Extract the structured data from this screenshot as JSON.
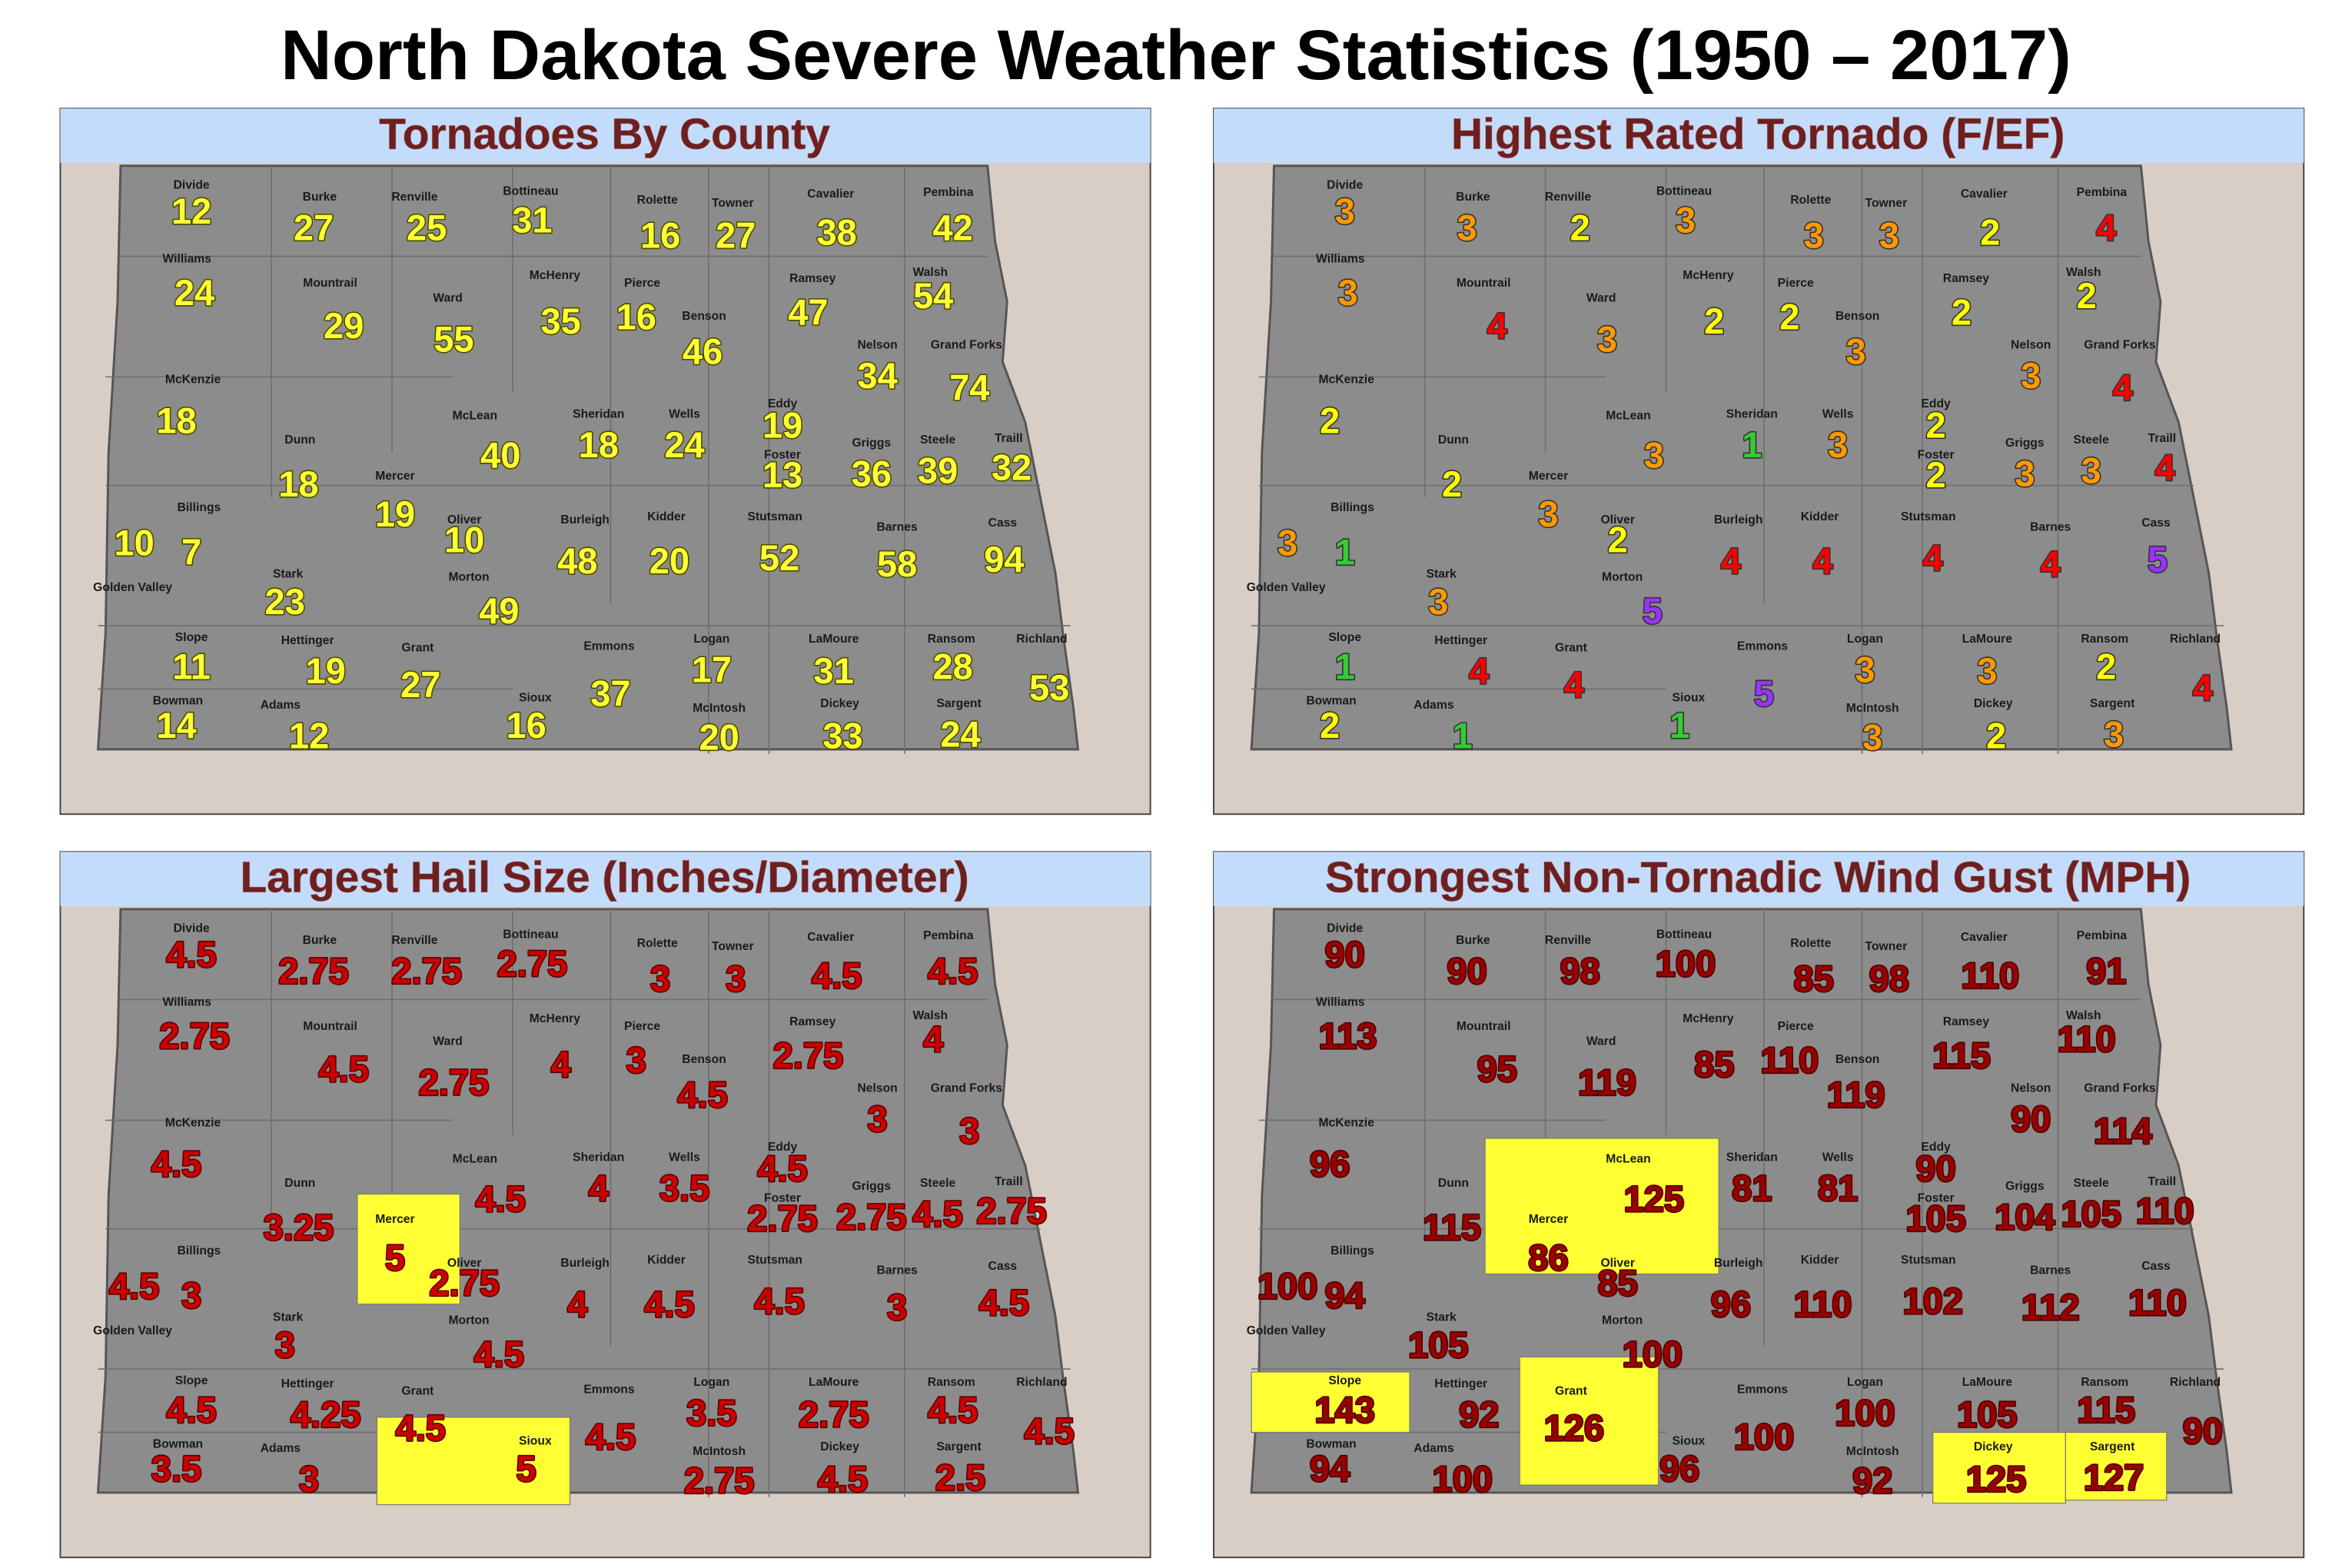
{
  "title": "North Dakota Severe Weather Statistics (1950 – 2017)",
  "counties": [
    "Divide",
    "Burke",
    "Renville",
    "Bottineau",
    "Rolette",
    "Towner",
    "Cavalier",
    "Pembina",
    "Williams",
    "Mountrail",
    "Ward",
    "McHenry",
    "Pierce",
    "Benson",
    "Ramsey",
    "Walsh",
    "Nelson",
    "Grand Forks",
    "McKenzie",
    "Dunn",
    "Mercer",
    "McLean",
    "Sheridan",
    "Wells",
    "Eddy",
    "Foster",
    "Griggs",
    "Steele",
    "Traill",
    "Billings",
    "Golden Valley",
    "Oliver",
    "Burleigh",
    "Kidder",
    "Stutsman",
    "Barnes",
    "Cass",
    "Stark",
    "Morton",
    "Slope",
    "Hettinger",
    "Grant",
    "Emmons",
    "Logan",
    "LaMoure",
    "Ransom",
    "Richland",
    "Bowman",
    "Adams",
    "Sioux",
    "McIntosh",
    "Dickey",
    "Sargent"
  ],
  "maps": [
    {
      "title": "Tornadoes By County",
      "value_color": "#ffff33",
      "outline_color": "#4a4a00",
      "values": [
        12,
        27,
        25,
        31,
        16,
        27,
        38,
        42,
        24,
        29,
        55,
        35,
        16,
        46,
        47,
        54,
        34,
        74,
        18,
        18,
        19,
        40,
        18,
        24,
        19,
        13,
        36,
        39,
        32,
        7,
        10,
        10,
        48,
        20,
        52,
        58,
        94,
        23,
        49,
        11,
        19,
        27,
        37,
        17,
        31,
        28,
        53,
        14,
        12,
        16,
        20,
        33,
        24
      ]
    },
    {
      "title": "Highest Rated Tornado (F/EF)",
      "outline_color": "#333333",
      "color_scale": [
        {
          "value": 1,
          "color": "#33cc33"
        },
        {
          "value": 2,
          "color": "#ffff00"
        },
        {
          "value": 3,
          "color": "#ff9900"
        },
        {
          "value": 4,
          "color": "#ff0000"
        },
        {
          "value": 5,
          "color": "#9933ff"
        }
      ],
      "values": [
        3,
        3,
        2,
        3,
        3,
        3,
        2,
        4,
        3,
        4,
        3,
        2,
        2,
        3,
        2,
        2,
        3,
        4,
        2,
        2,
        3,
        3,
        1,
        3,
        2,
        2,
        3,
        3,
        4,
        1,
        3,
        2,
        4,
        4,
        4,
        4,
        5,
        3,
        5,
        1,
        4,
        4,
        5,
        3,
        3,
        2,
        4,
        2,
        1,
        1,
        3,
        2,
        3
      ]
    },
    {
      "title": "Largest Hail Size (Inches/Diameter)",
      "value_color": "#cc0000",
      "outline_color": "#550000",
      "highlight_color": "#ffff33",
      "highlight": [
        "Mercer",
        "Sioux"
      ],
      "values": [
        4.5,
        2.75,
        2.75,
        2.75,
        3,
        3,
        4.5,
        4.5,
        2.75,
        4.5,
        2.75,
        4,
        3,
        4.5,
        2.75,
        4,
        3,
        3,
        4.5,
        3.25,
        5,
        4.5,
        4,
        3.5,
        4.5,
        2.75,
        2.75,
        4.5,
        2.75,
        3,
        4.5,
        2.75,
        4,
        4.5,
        4.5,
        3,
        4.5,
        3,
        4.5,
        4.5,
        4.25,
        4.5,
        4.5,
        3.5,
        2.75,
        4.5,
        4.5,
        3.5,
        3,
        5,
        2.75,
        4.5,
        2.5
      ]
    },
    {
      "title": "Strongest Non-Tornadic Wind Gust (MPH)",
      "value_color": "#990000",
      "outline_color": "#4a0000",
      "highlight_color": "#ffff33",
      "highlight": [
        "McLean",
        "Slope",
        "Grant",
        "Dickey",
        "Sargent"
      ],
      "values": [
        90,
        90,
        98,
        100,
        85,
        98,
        110,
        91,
        113,
        95,
        119,
        85,
        110,
        119,
        115,
        110,
        90,
        114,
        96,
        115,
        86,
        125,
        81,
        81,
        90,
        105,
        104,
        105,
        110,
        94,
        100,
        85,
        96,
        110,
        102,
        112,
        110,
        105,
        100,
        143,
        92,
        126,
        100,
        100,
        105,
        115,
        90,
        94,
        100,
        96,
        92,
        125,
        127
      ]
    }
  ]
}
